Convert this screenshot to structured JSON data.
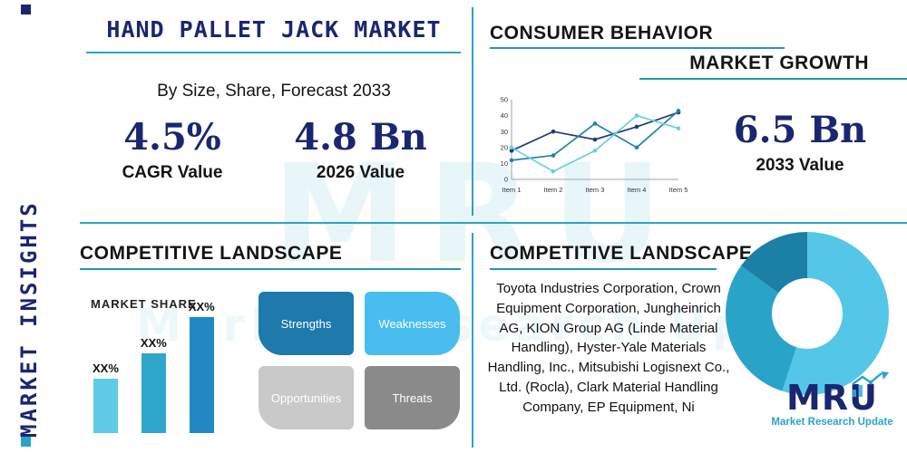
{
  "page": {
    "watermark": "MRU",
    "watermark_tagline": "Market Research Update"
  },
  "sidebar": {
    "title": "MARKET INSIGHTS"
  },
  "header": {
    "title": "HAND PALLET JACK MARKET",
    "subtitle": "By Size, Share, Forecast 2033"
  },
  "stats": {
    "cagr": {
      "value": "4.5%",
      "label": "CAGR Value"
    },
    "value_2026": {
      "value": "4.8 Bn",
      "label": "2026 Value"
    },
    "value_2033": {
      "value": "6.5 Bn",
      "label": "2033 Value"
    }
  },
  "sections": {
    "consumer_behavior": "CONSUMER BEHAVIOR",
    "market_growth": "MARKET GROWTH",
    "competitive_landscape_left": "COMPETITIVE LANDSCAPE",
    "competitive_landscape_right": "COMPETITIVE LANDSCAPE"
  },
  "swot": {
    "strengths": "Strengths",
    "weaknesses": "Weaknesses",
    "opportunities": "Opportunities",
    "threats": "Threats"
  },
  "companies": "Toyota Industries Corporation, Crown Equipment Corporation, Jungheinrich AG, KION Group AG (Linde Material Handling), Hyster-Yale Materials Handling, Inc., Mitsubishi Logisnext Co., Ltd. (Rocla), Clark Material Handling Company, EP Equipment, Ni",
  "logo": {
    "text": "MRU",
    "tagline": "Market Research Update"
  },
  "colors": {
    "navy": "#1b2671",
    "teal": "#2aa3c9",
    "light_cyan": "#56c8e8",
    "text_dark": "#141414"
  },
  "chart_data": [
    {
      "type": "line",
      "title": "Consumer Behavior trend",
      "categories": [
        "Item 1",
        "Item 2",
        "Item 3",
        "Item 4",
        "Item 5"
      ],
      "series": [
        {
          "name": "series-navy",
          "color": "#223a7a",
          "values": [
            18,
            30,
            25,
            33,
            42
          ]
        },
        {
          "name": "series-teal",
          "color": "#1e86a8",
          "values": [
            12,
            15,
            35,
            20,
            43
          ]
        },
        {
          "name": "series-cyan",
          "color": "#67cfe6",
          "values": [
            20,
            5,
            18,
            40,
            32
          ]
        }
      ],
      "ylim": [
        0,
        50
      ],
      "yticks": [
        0,
        10,
        20,
        30,
        40,
        50
      ],
      "grid": false,
      "legend": "none"
    },
    {
      "type": "bar",
      "title": "MARKET SHARE",
      "categories": [
        "",
        "",
        ""
      ],
      "values": [
        30,
        44,
        64
      ],
      "labels": [
        "XX%",
        "XX%",
        "XX%"
      ],
      "colors": [
        "#5ecbe9",
        "#2fa7cd",
        "#2089c4"
      ],
      "ylim": [
        0,
        70
      ]
    },
    {
      "type": "pie",
      "donut": true,
      "rotate": -54,
      "segments": [
        {
          "label": "segment-dark-teal",
          "value": 15,
          "color": "#1b7fa6"
        },
        {
          "label": "segment-light-cyan",
          "value": 55,
          "color": "#54c6e8"
        },
        {
          "label": "segment-medium-teal",
          "value": 30,
          "color": "#2aa3c9"
        }
      ]
    }
  ]
}
